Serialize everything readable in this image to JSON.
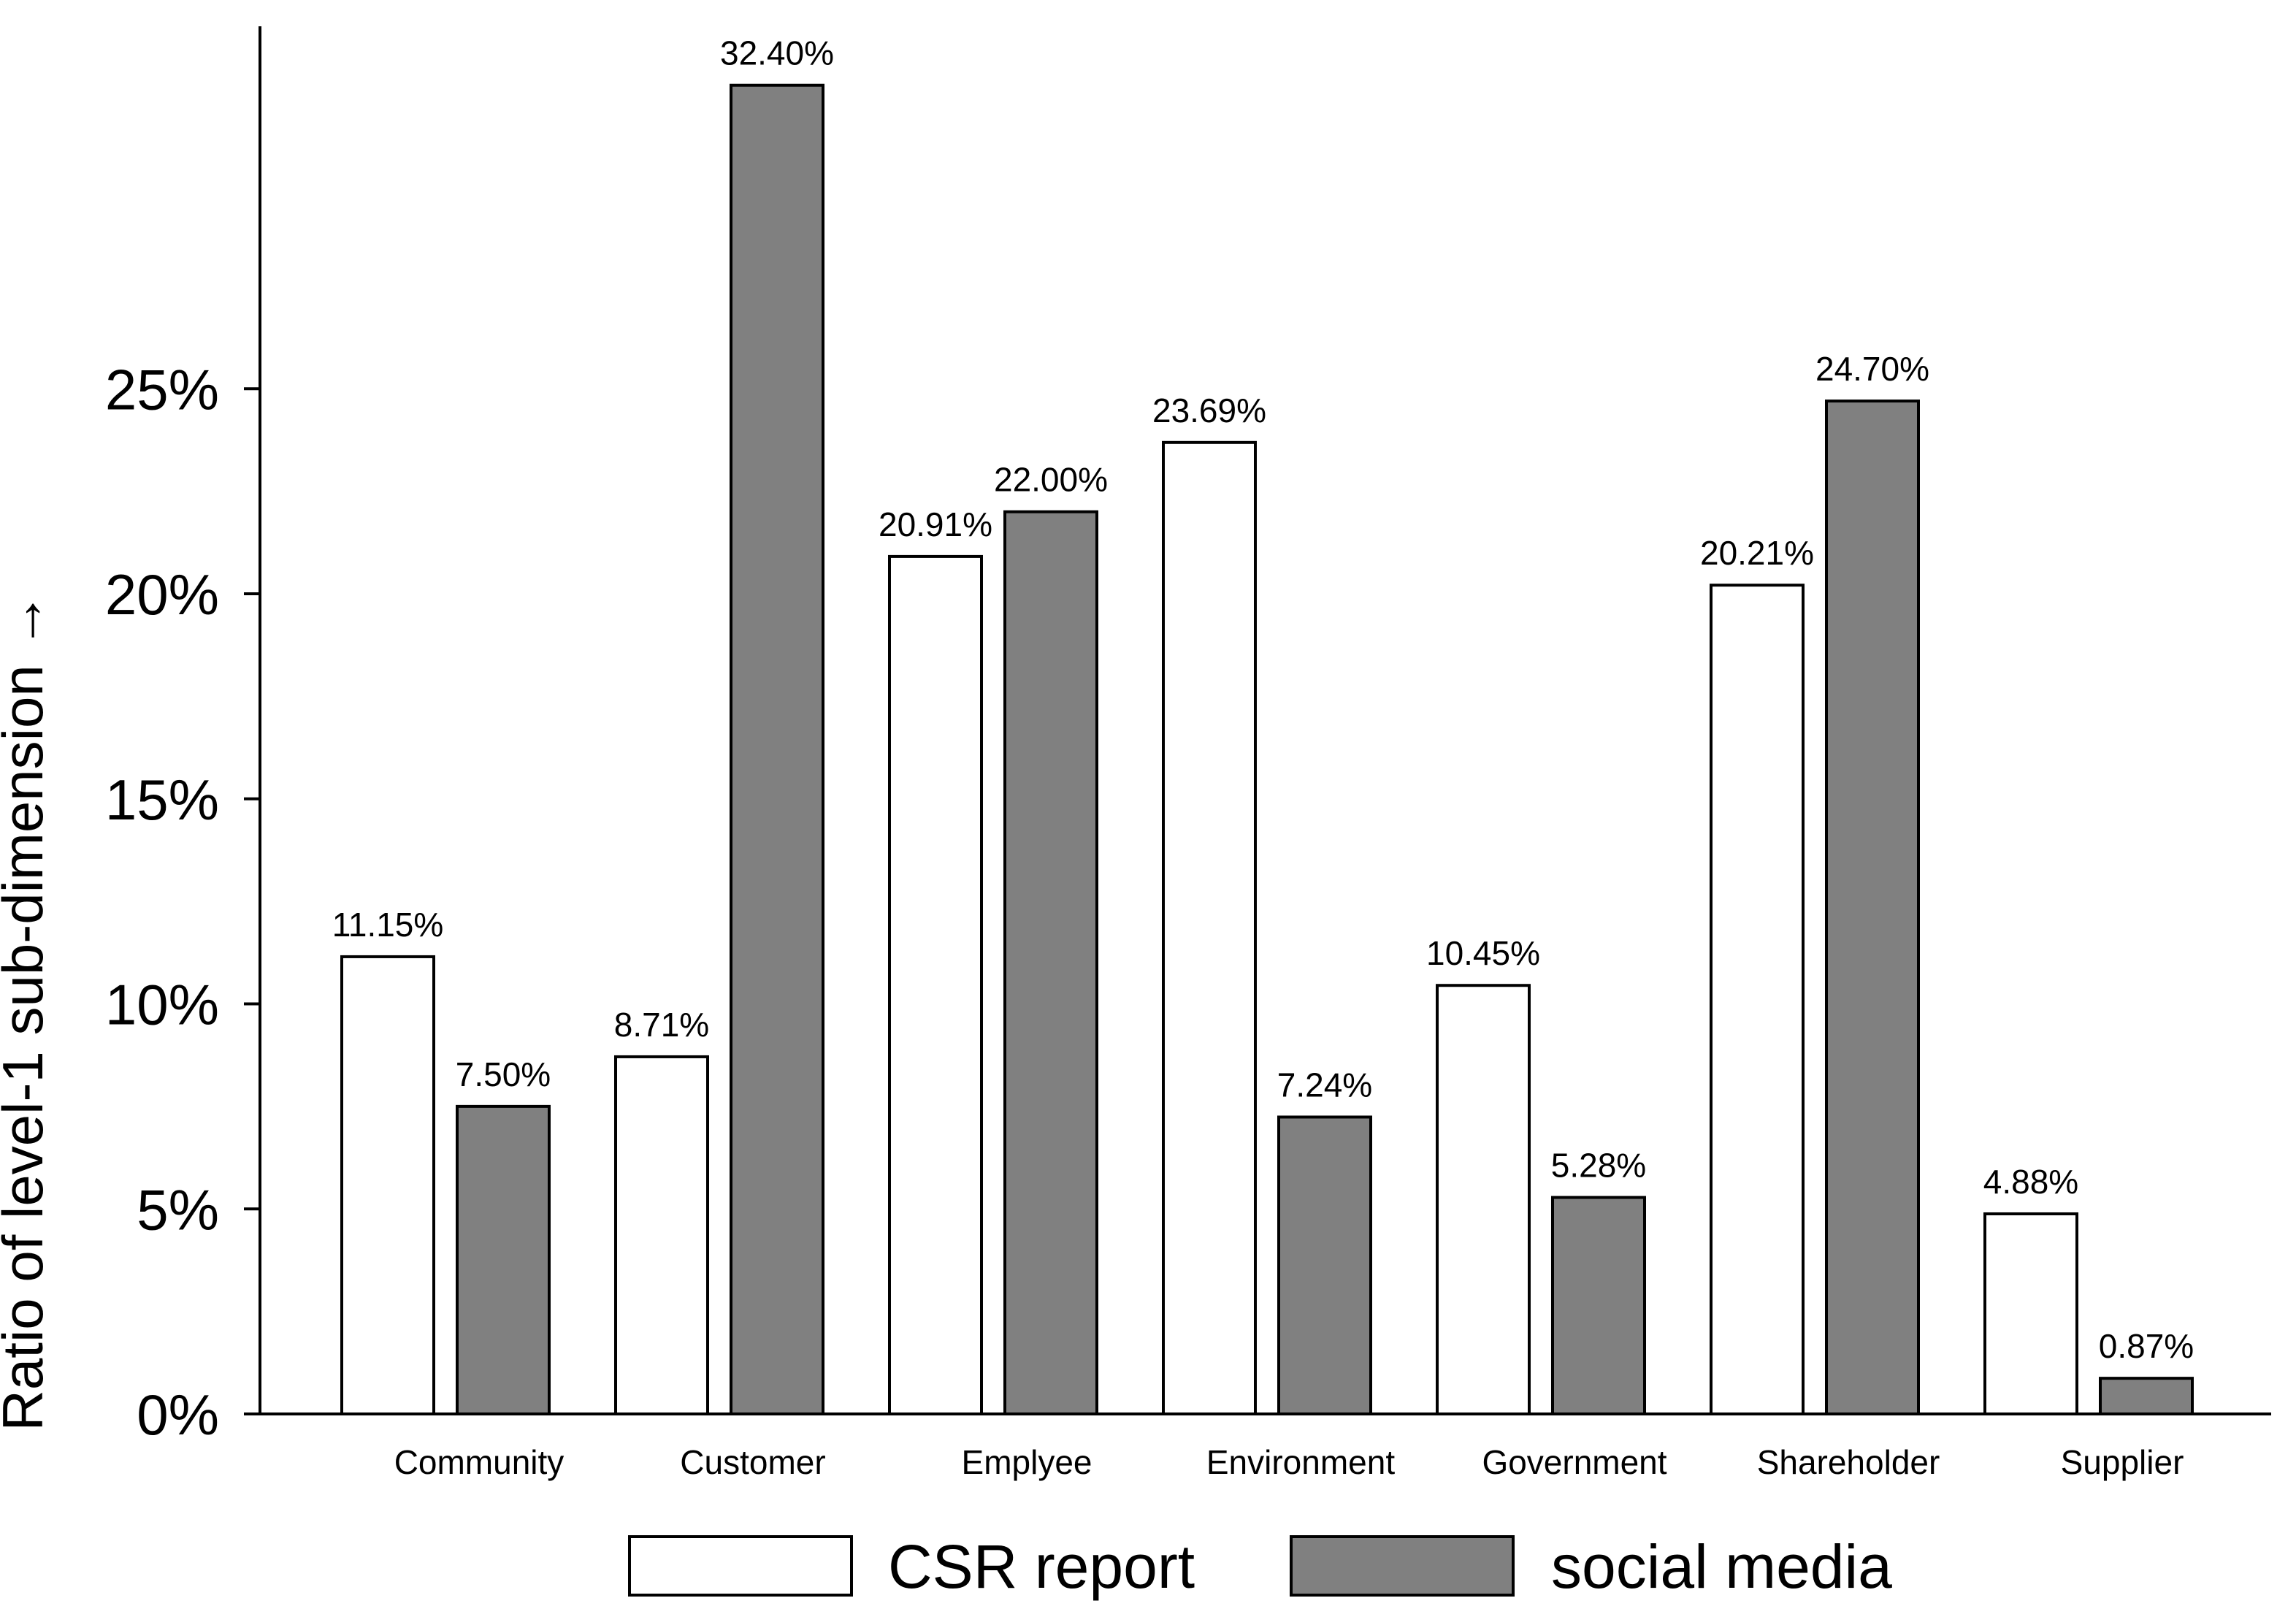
{
  "chart_data": {
    "type": "bar",
    "title": "",
    "xlabel": "",
    "ylabel": "Ratio of level-1 sub-dimension →",
    "ylim": [
      0,
      34
    ],
    "yticks": [
      0,
      5,
      10,
      15,
      20,
      25
    ],
    "ytick_labels": [
      "0%",
      "5%",
      "10%",
      "15%",
      "20%",
      "25%"
    ],
    "categories": [
      "Community",
      "Customer",
      "Emplyee",
      "Environment",
      "Government",
      "Shareholder",
      "Supplier"
    ],
    "series": [
      {
        "name": "CSR report",
        "color": "#ffffff",
        "values": [
          11.15,
          8.71,
          20.91,
          23.69,
          10.45,
          20.21,
          4.88
        ],
        "labels": [
          "11.15%",
          "8.71%",
          "20.91%",
          "23.69%",
          "10.45%",
          "20.21%",
          "4.88%"
        ]
      },
      {
        "name": "social media",
        "color": "#808080",
        "values": [
          7.5,
          32.4,
          22.0,
          7.24,
          5.28,
          24.7,
          0.87
        ],
        "labels": [
          "7.50%",
          "32.40%",
          "22.00%",
          "7.24%",
          "5.28%",
          "24.70%",
          "0.87%"
        ]
      }
    ],
    "legend_position": "bottom",
    "grid": false
  }
}
